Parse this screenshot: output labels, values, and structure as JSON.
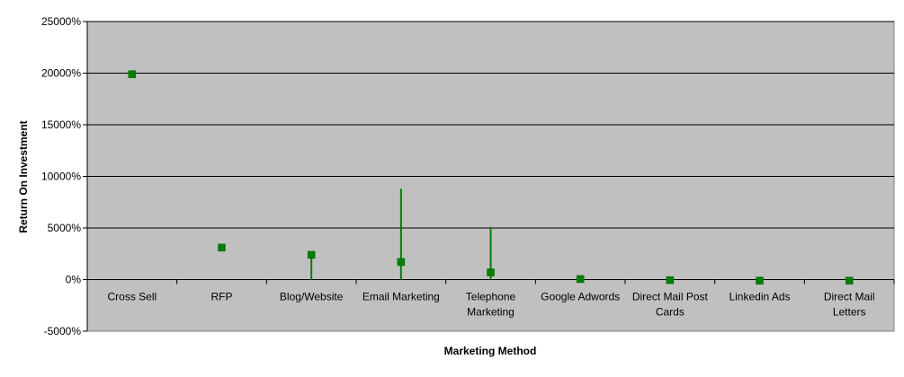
{
  "chart_data": {
    "type": "scatter",
    "title": "",
    "xlabel": "Marketing Method",
    "ylabel": "Return On Investment",
    "categories": [
      [
        "Cross Sell"
      ],
      [
        "RFP"
      ],
      [
        "Blog/Website"
      ],
      [
        "Email Marketing"
      ],
      [
        "Telephone",
        "Marketing"
      ],
      [
        "Google Adwords"
      ],
      [
        "Direct Mail Post",
        "Cards"
      ],
      [
        "Linkedin Ads"
      ],
      [
        "Direct Mail",
        "Letters"
      ]
    ],
    "values": [
      19900,
      3100,
      2400,
      1700,
      700,
      50,
      -50,
      -100,
      -100
    ],
    "error_low": [
      null,
      null,
      0,
      0,
      0,
      0,
      null,
      null,
      null
    ],
    "error_high": [
      null,
      null,
      2400,
      8800,
      5100,
      200,
      null,
      null,
      null
    ],
    "ylim": [
      -5000,
      25000
    ],
    "yticks": [
      -5000,
      0,
      5000,
      10000,
      15000,
      20000,
      25000
    ],
    "ytick_labels": [
      "-5000%",
      "0%",
      "5000%",
      "10000%",
      "15000%",
      "20000%",
      "25000%"
    ],
    "grid": true,
    "colors": {
      "plot_background": "#c0c0c0",
      "marker": "#008000",
      "gridline": "#000000"
    }
  }
}
